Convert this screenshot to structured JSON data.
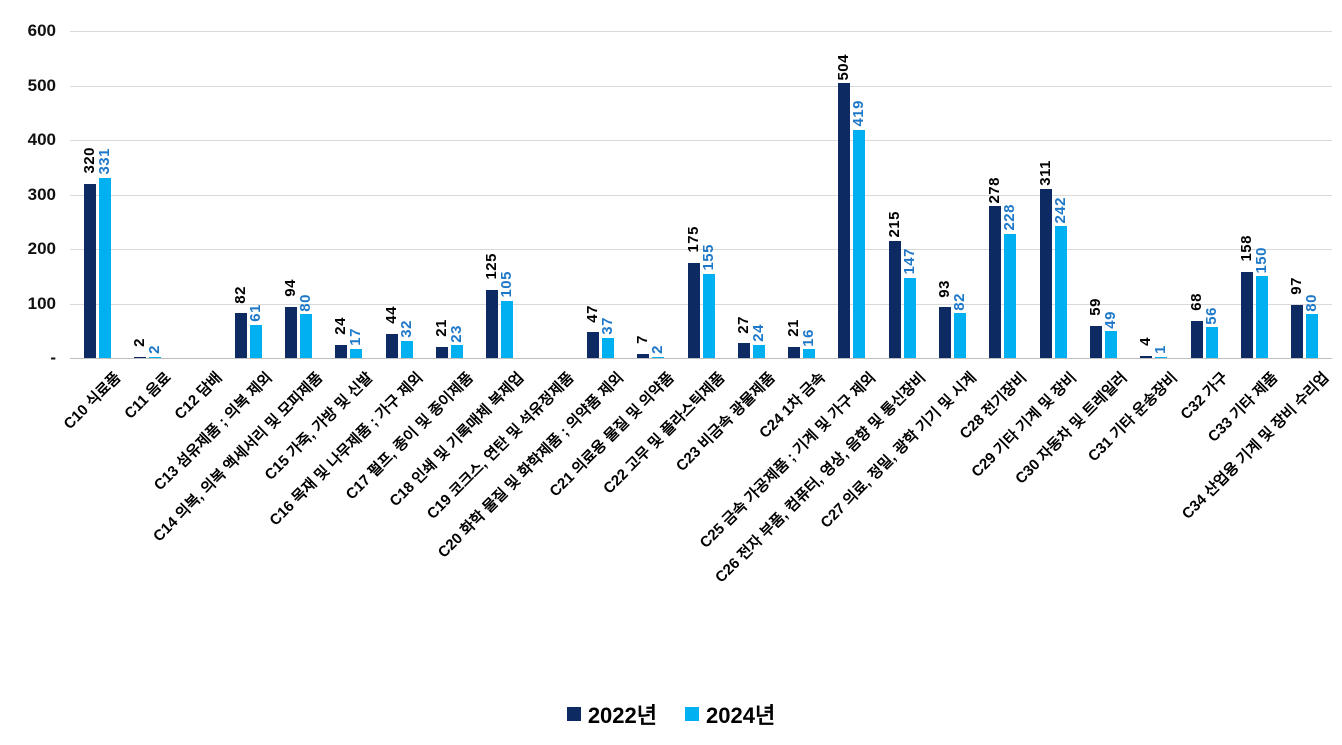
{
  "chart_data": {
    "type": "bar",
    "title": "",
    "categories": [
      "C10 식료품",
      "C11 음료",
      "C12 담배",
      "C13 섬유제품 ; 의복 제외",
      "C14 의복, 의복 액세서리 및 모피제품",
      "C15 가죽, 가방 및 신발",
      "C16 목재 및 나무제품 ; 가구 제외",
      "C17 펄프, 종이 및 종이제품",
      "C18 인쇄 및 기록매체 복제업",
      "C19 코크스, 연탄 및 석유정제품",
      "C20 화학 물질 및 화학제품 ; 의약품 제외",
      "C21 의료용 물질 및 의약품",
      "C22 고무 및 플라스틱제품",
      "C23 비금속 광물제품",
      "C24 1차 금속",
      "C25 금속 가공제품 ; 기계 및 가구 제외",
      "C26 전자 부품, 컴퓨터, 영상, 음향 및 통신장비",
      "C27 의료, 정밀, 광학 기기 및 시계",
      "C28 전기장비",
      "C29 기타 기계 및 장비",
      "C30 자동차 및 트레일러",
      "C31 기타 운송장비",
      "C32 가구",
      "C33 기타 제품",
      "C34 산업용 기계 및 장비 수리업"
    ],
    "series": [
      {
        "name": "2022년",
        "color": "#0e2a63",
        "label_color": "#000000",
        "values": [
          320,
          2,
          null,
          82,
          94,
          24,
          44,
          21,
          125,
          null,
          47,
          7,
          175,
          27,
          21,
          504,
          215,
          93,
          278,
          311,
          59,
          4,
          68,
          158,
          97
        ]
      },
      {
        "name": "2024년",
        "color": "#00b0f0",
        "label_color": "#1e78c8",
        "values": [
          331,
          2,
          null,
          61,
          80,
          17,
          32,
          23,
          105,
          null,
          37,
          2,
          155,
          24,
          16,
          419,
          147,
          82,
          228,
          242,
          49,
          1,
          56,
          150,
          80
        ]
      }
    ],
    "y_ticks": [
      "600",
      "500",
      "400",
      "300",
      "200",
      "100",
      "-"
    ],
    "ylim": [
      0,
      600
    ],
    "grid": "horizontal",
    "legend_position": "bottom-center",
    "colors": {
      "gridline": "#d9d9d9",
      "axis_line": "#bfbfbf",
      "tick_text": "#111111"
    }
  }
}
